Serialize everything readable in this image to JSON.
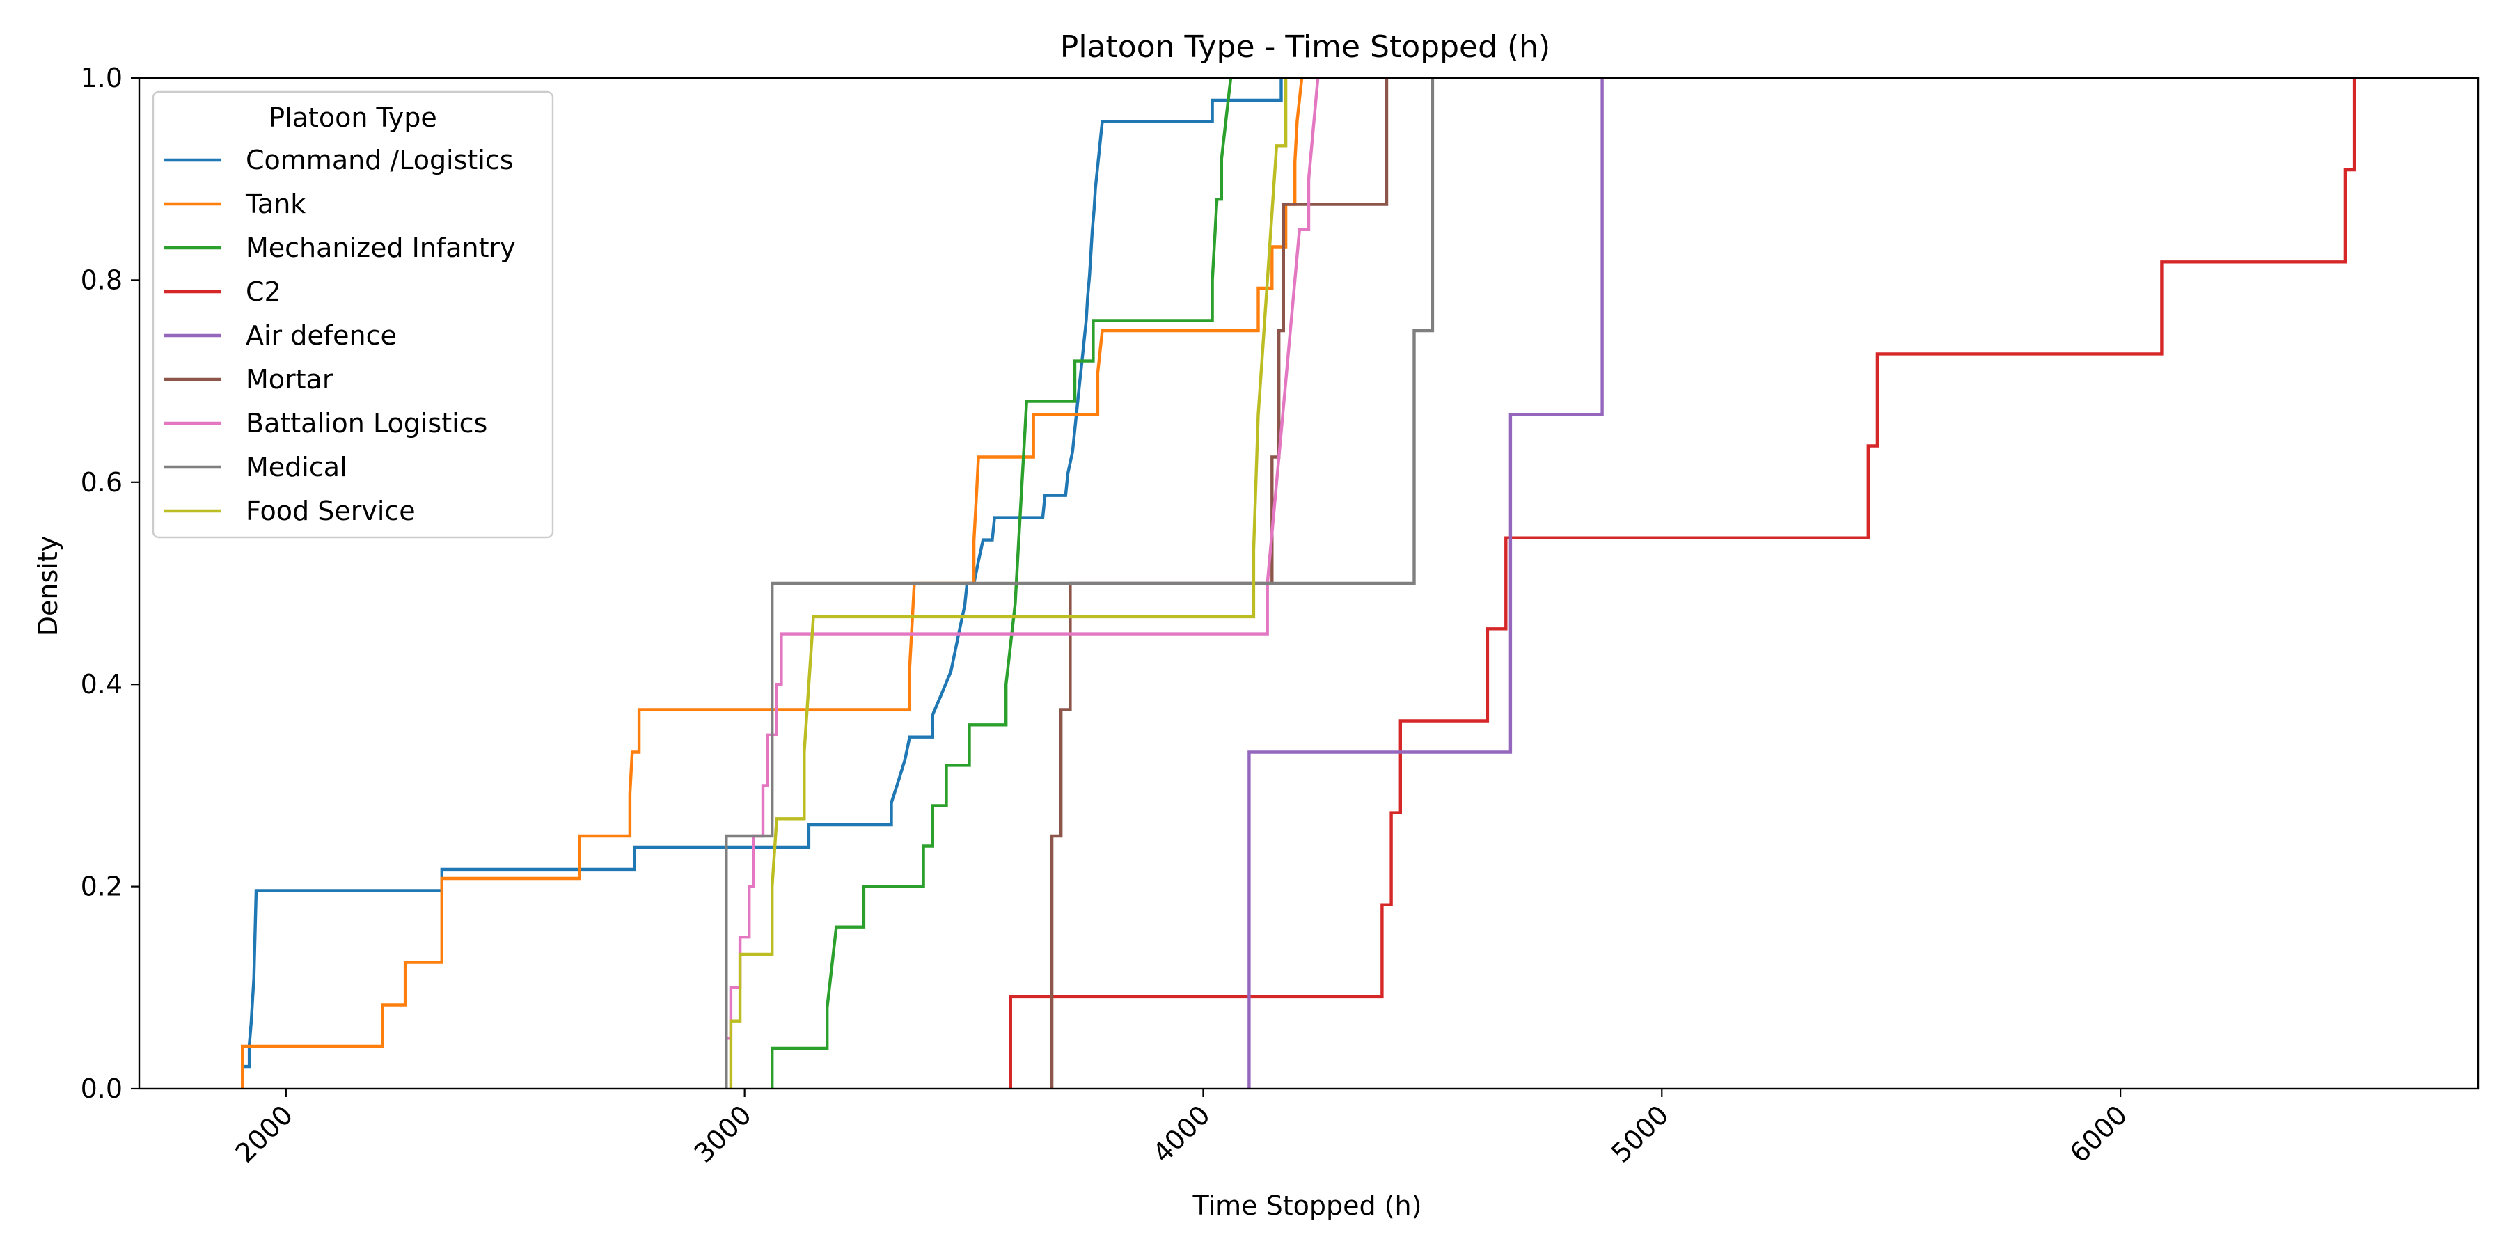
{
  "chart_data": {
    "type": "line",
    "title": "Platoon Type - Time Stopped (h)",
    "xlabel": "Time Stopped (h)",
    "ylabel": "Density",
    "xlim": [
      1680,
      6780
    ],
    "ylim": [
      0.0,
      1.0
    ],
    "x_ticks": [
      2000,
      3000,
      4000,
      5000,
      6000
    ],
    "y_ticks": [
      0.0,
      0.2,
      0.4,
      0.6,
      0.8,
      1.0
    ],
    "x_tick_labels": [
      "2000",
      "3000",
      "4000",
      "5000",
      "6000"
    ],
    "y_tick_labels": [
      "0.0",
      "0.2",
      "0.4",
      "0.6",
      "0.8",
      "1.0"
    ],
    "legend": {
      "title": "Platoon Type",
      "placement": "upper-left"
    },
    "series": [
      {
        "name": "Command /Logistics",
        "color": "#1f77b4",
        "points": [
          [
            1905,
            0.0
          ],
          [
            1905,
            0.022
          ],
          [
            1920,
            0.022
          ],
          [
            1920,
            0.043
          ],
          [
            1924,
            0.065
          ],
          [
            1927,
            0.087
          ],
          [
            1930,
            0.109
          ],
          [
            1935,
            0.196
          ],
          [
            2340,
            0.196
          ],
          [
            2340,
            0.217
          ],
          [
            2760,
            0.217
          ],
          [
            2760,
            0.239
          ],
          [
            3140,
            0.239
          ],
          [
            3140,
            0.261
          ],
          [
            3320,
            0.261
          ],
          [
            3320,
            0.283
          ],
          [
            3335,
            0.304
          ],
          [
            3350,
            0.326
          ],
          [
            3360,
            0.348
          ],
          [
            3410,
            0.348
          ],
          [
            3410,
            0.37
          ],
          [
            3430,
            0.391
          ],
          [
            3450,
            0.413
          ],
          [
            3460,
            0.435
          ],
          [
            3470,
            0.457
          ],
          [
            3480,
            0.478
          ],
          [
            3485,
            0.5
          ],
          [
            3500,
            0.5
          ],
          [
            3510,
            0.522
          ],
          [
            3520,
            0.543
          ],
          [
            3540,
            0.543
          ],
          [
            3545,
            0.565
          ],
          [
            3650,
            0.565
          ],
          [
            3655,
            0.587
          ],
          [
            3700,
            0.587
          ],
          [
            3705,
            0.609
          ],
          [
            3715,
            0.63
          ],
          [
            3720,
            0.652
          ],
          [
            3725,
            0.674
          ],
          [
            3730,
            0.696
          ],
          [
            3735,
            0.717
          ],
          [
            3740,
            0.739
          ],
          [
            3745,
            0.761
          ],
          [
            3748,
            0.783
          ],
          [
            3752,
            0.804
          ],
          [
            3755,
            0.826
          ],
          [
            3758,
            0.848
          ],
          [
            3762,
            0.87
          ],
          [
            3765,
            0.891
          ],
          [
            3770,
            0.913
          ],
          [
            3775,
            0.935
          ],
          [
            3780,
            0.957
          ],
          [
            4020,
            0.957
          ],
          [
            4020,
            0.978
          ],
          [
            4170,
            0.978
          ],
          [
            4170,
            1.0
          ]
        ]
      },
      {
        "name": "Tank",
        "color": "#ff7f0e",
        "points": [
          [
            1905,
            0.0
          ],
          [
            1905,
            0.042
          ],
          [
            2210,
            0.042
          ],
          [
            2210,
            0.083
          ],
          [
            2260,
            0.083
          ],
          [
            2260,
            0.125
          ],
          [
            2340,
            0.125
          ],
          [
            2340,
            0.208
          ],
          [
            2640,
            0.208
          ],
          [
            2640,
            0.25
          ],
          [
            2750,
            0.25
          ],
          [
            2750,
            0.292
          ],
          [
            2755,
            0.333
          ],
          [
            2770,
            0.333
          ],
          [
            2770,
            0.375
          ],
          [
            3360,
            0.375
          ],
          [
            3360,
            0.417
          ],
          [
            3365,
            0.458
          ],
          [
            3370,
            0.5
          ],
          [
            3500,
            0.5
          ],
          [
            3500,
            0.542
          ],
          [
            3505,
            0.583
          ],
          [
            3510,
            0.625
          ],
          [
            3630,
            0.625
          ],
          [
            3630,
            0.667
          ],
          [
            3770,
            0.667
          ],
          [
            3770,
            0.708
          ],
          [
            3780,
            0.75
          ],
          [
            4120,
            0.75
          ],
          [
            4120,
            0.792
          ],
          [
            4150,
            0.792
          ],
          [
            4150,
            0.833
          ],
          [
            4180,
            0.833
          ],
          [
            4180,
            0.875
          ],
          [
            4200,
            0.875
          ],
          [
            4200,
            0.917
          ],
          [
            4205,
            0.958
          ],
          [
            4215,
            1.0
          ]
        ]
      },
      {
        "name": "Mechanized Infantry",
        "color": "#2ca02c",
        "points": [
          [
            3060,
            0.0
          ],
          [
            3060,
            0.04
          ],
          [
            3180,
            0.04
          ],
          [
            3180,
            0.08
          ],
          [
            3190,
            0.12
          ],
          [
            3200,
            0.16
          ],
          [
            3260,
            0.16
          ],
          [
            3260,
            0.2
          ],
          [
            3390,
            0.2
          ],
          [
            3390,
            0.24
          ],
          [
            3410,
            0.24
          ],
          [
            3410,
            0.28
          ],
          [
            3440,
            0.28
          ],
          [
            3440,
            0.32
          ],
          [
            3490,
            0.32
          ],
          [
            3490,
            0.36
          ],
          [
            3570,
            0.36
          ],
          [
            3570,
            0.4
          ],
          [
            3580,
            0.44
          ],
          [
            3590,
            0.48
          ],
          [
            3595,
            0.52
          ],
          [
            3600,
            0.56
          ],
          [
            3605,
            0.6
          ],
          [
            3610,
            0.64
          ],
          [
            3615,
            0.68
          ],
          [
            3720,
            0.68
          ],
          [
            3720,
            0.72
          ],
          [
            3760,
            0.72
          ],
          [
            3760,
            0.76
          ],
          [
            4020,
            0.76
          ],
          [
            4020,
            0.8
          ],
          [
            4025,
            0.84
          ],
          [
            4030,
            0.88
          ],
          [
            4040,
            0.88
          ],
          [
            4040,
            0.92
          ],
          [
            4050,
            0.96
          ],
          [
            4060,
            1.0
          ]
        ]
      },
      {
        "name": "C2",
        "color": "#d62728",
        "points": [
          [
            3580,
            0.0
          ],
          [
            3580,
            0.091
          ],
          [
            4390,
            0.091
          ],
          [
            4390,
            0.182
          ],
          [
            4410,
            0.182
          ],
          [
            4410,
            0.273
          ],
          [
            4430,
            0.273
          ],
          [
            4430,
            0.364
          ],
          [
            4620,
            0.364
          ],
          [
            4620,
            0.455
          ],
          [
            4660,
            0.455
          ],
          [
            4660,
            0.545
          ],
          [
            5450,
            0.545
          ],
          [
            5450,
            0.636
          ],
          [
            5470,
            0.636
          ],
          [
            5470,
            0.727
          ],
          [
            6090,
            0.727
          ],
          [
            6090,
            0.818
          ],
          [
            6490,
            0.818
          ],
          [
            6490,
            0.909
          ],
          [
            6510,
            0.909
          ],
          [
            6510,
            1.0
          ]
        ]
      },
      {
        "name": "Air defence",
        "color": "#9467bd",
        "points": [
          [
            4100,
            0.0
          ],
          [
            4100,
            0.333
          ],
          [
            4670,
            0.333
          ],
          [
            4670,
            0.667
          ],
          [
            4870,
            0.667
          ],
          [
            4870,
            1.0
          ]
        ]
      },
      {
        "name": "Mortar",
        "color": "#8c564b",
        "points": [
          [
            3670,
            0.0
          ],
          [
            3670,
            0.25
          ],
          [
            3690,
            0.25
          ],
          [
            3690,
            0.375
          ],
          [
            3710,
            0.375
          ],
          [
            3710,
            0.5
          ],
          [
            4150,
            0.5
          ],
          [
            4150,
            0.625
          ],
          [
            4165,
            0.625
          ],
          [
            4165,
            0.75
          ],
          [
            4175,
            0.75
          ],
          [
            4175,
            0.875
          ],
          [
            4400,
            0.875
          ],
          [
            4400,
            1.0
          ]
        ]
      },
      {
        "name": "Battalion Logistics",
        "color": "#e377c2",
        "points": [
          [
            2960,
            0.0
          ],
          [
            2960,
            0.05
          ],
          [
            2970,
            0.05
          ],
          [
            2970,
            0.1
          ],
          [
            2990,
            0.1
          ],
          [
            2990,
            0.15
          ],
          [
            3010,
            0.15
          ],
          [
            3010,
            0.2
          ],
          [
            3020,
            0.2
          ],
          [
            3020,
            0.25
          ],
          [
            3040,
            0.25
          ],
          [
            3040,
            0.3
          ],
          [
            3050,
            0.3
          ],
          [
            3050,
            0.35
          ],
          [
            3070,
            0.35
          ],
          [
            3070,
            0.4
          ],
          [
            3080,
            0.4
          ],
          [
            3080,
            0.45
          ],
          [
            4140,
            0.45
          ],
          [
            4140,
            0.5
          ],
          [
            4150,
            0.55
          ],
          [
            4160,
            0.6
          ],
          [
            4170,
            0.65
          ],
          [
            4180,
            0.7
          ],
          [
            4190,
            0.75
          ],
          [
            4200,
            0.8
          ],
          [
            4210,
            0.85
          ],
          [
            4230,
            0.85
          ],
          [
            4230,
            0.9
          ],
          [
            4240,
            0.95
          ],
          [
            4250,
            1.0
          ]
        ]
      },
      {
        "name": "Medical",
        "color": "#7f7f7f",
        "points": [
          [
            2960,
            0.0
          ],
          [
            2960,
            0.25
          ],
          [
            3060,
            0.25
          ],
          [
            3060,
            0.5
          ],
          [
            4460,
            0.5
          ],
          [
            4460,
            0.75
          ],
          [
            4500,
            0.75
          ],
          [
            4500,
            1.0
          ]
        ]
      },
      {
        "name": "Food Service",
        "color": "#bcbd22",
        "points": [
          [
            2970,
            0.0
          ],
          [
            2970,
            0.067
          ],
          [
            2990,
            0.067
          ],
          [
            2990,
            0.133
          ],
          [
            3060,
            0.133
          ],
          [
            3060,
            0.2
          ],
          [
            3070,
            0.267
          ],
          [
            3130,
            0.267
          ],
          [
            3130,
            0.333
          ],
          [
            3140,
            0.4
          ],
          [
            3150,
            0.467
          ],
          [
            4110,
            0.467
          ],
          [
            4110,
            0.533
          ],
          [
            4115,
            0.6
          ],
          [
            4120,
            0.667
          ],
          [
            4130,
            0.733
          ],
          [
            4140,
            0.8
          ],
          [
            4150,
            0.867
          ],
          [
            4160,
            0.933
          ],
          [
            4180,
            0.933
          ],
          [
            4180,
            1.0
          ]
        ]
      }
    ]
  }
}
